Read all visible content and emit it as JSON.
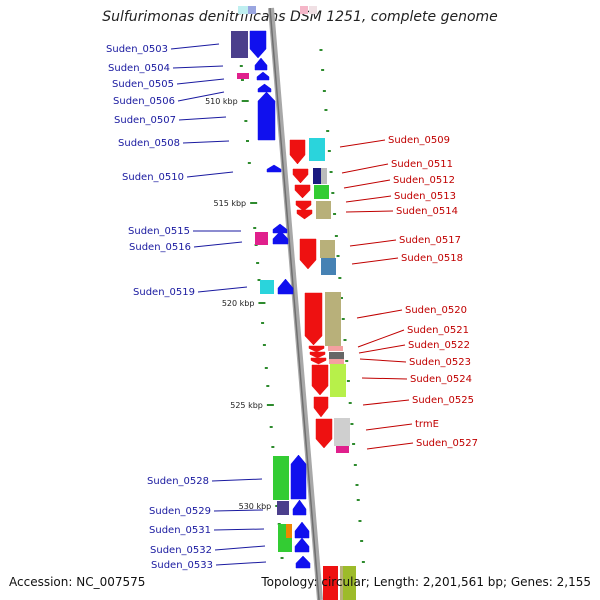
{
  "title": "Sulfurimonas denitrificans DSM 1251, complete genome",
  "footer": {
    "accession": "Accession: NC_007575",
    "topology": "Topology: circular; Length: 2,201,561 bp; Genes: 2,155"
  },
  "colors": {
    "backbone": "#909090",
    "tick": "#2e8b2e",
    "left_label": "#1a1aa0",
    "right_label": "#c00000",
    "forward_strand": "#1010ee",
    "reverse_strand": "#ee1111"
  },
  "kbp_marks": [
    "510 kbp",
    "515 kbp",
    "520 kbp",
    "525 kbp",
    "530 kbp"
  ],
  "left_genes": [
    {
      "name": "Suden_0503"
    },
    {
      "name": "Suden_0504"
    },
    {
      "name": "Suden_0505"
    },
    {
      "name": "Suden_0506"
    },
    {
      "name": "Suden_0507"
    },
    {
      "name": "Suden_0508"
    },
    {
      "name": "Suden_0510"
    },
    {
      "name": "Suden_0515"
    },
    {
      "name": "Suden_0516"
    },
    {
      "name": "Suden_0519"
    },
    {
      "name": "Suden_0528"
    },
    {
      "name": "Suden_0529"
    },
    {
      "name": "Suden_0531"
    },
    {
      "name": "Suden_0532"
    },
    {
      "name": "Suden_0533"
    }
  ],
  "right_genes": [
    {
      "name": "Suden_0509"
    },
    {
      "name": "Suden_0511"
    },
    {
      "name": "Suden_0512"
    },
    {
      "name": "Suden_0513"
    },
    {
      "name": "Suden_0514"
    },
    {
      "name": "Suden_0517"
    },
    {
      "name": "Suden_0518"
    },
    {
      "name": "Suden_0520"
    },
    {
      "name": "Suden_0521"
    },
    {
      "name": "Suden_0522"
    },
    {
      "name": "Suden_0523"
    },
    {
      "name": "Suden_0524"
    },
    {
      "name": "Suden_0525"
    },
    {
      "name": "trmE"
    },
    {
      "name": "Suden_0527"
    }
  ]
}
